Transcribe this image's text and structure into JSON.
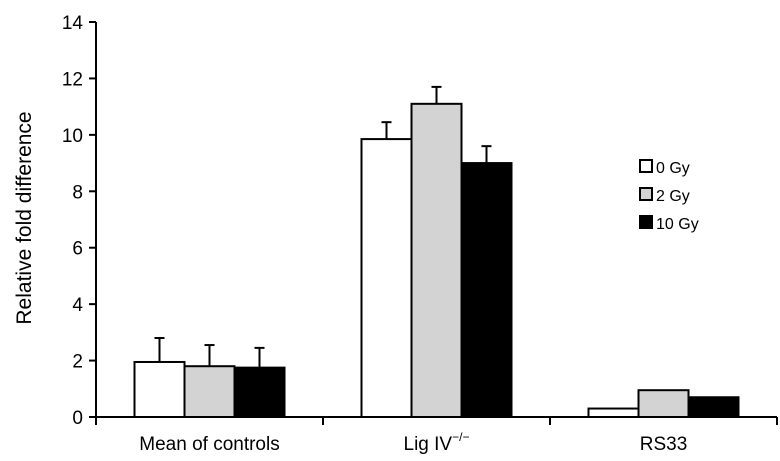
{
  "chart_data": {
    "type": "bar",
    "title": "",
    "xlabel": "",
    "ylabel": "Relative fold difference",
    "ylim": [
      0,
      14
    ],
    "yticks": [
      "0",
      "2",
      "4",
      "6",
      "8",
      "10",
      "12",
      "14"
    ],
    "categories": [
      "Mean of controls",
      "Lig IV−/−",
      "RS33"
    ],
    "category_parts": [
      {
        "base": "Mean of controls",
        "sup": ""
      },
      {
        "base": "Lig IV",
        "sup": "−/−"
      },
      {
        "base": "RS33",
        "sup": ""
      }
    ],
    "series": [
      {
        "name": "0 Gy",
        "color": "#ffffff",
        "values": [
          1.95,
          9.85,
          0.3
        ],
        "errors": [
          0.85,
          0.6,
          0.0
        ]
      },
      {
        "name": "2 Gy",
        "color": "#d3d3d3",
        "values": [
          1.8,
          11.1,
          0.95
        ],
        "errors": [
          0.75,
          0.6,
          0.0
        ]
      },
      {
        "name": "10 Gy",
        "color": "#000000",
        "values": [
          1.75,
          9.0,
          0.7
        ],
        "errors": [
          0.7,
          0.6,
          0.0
        ]
      }
    ],
    "grid": false,
    "legend_position": "right"
  }
}
